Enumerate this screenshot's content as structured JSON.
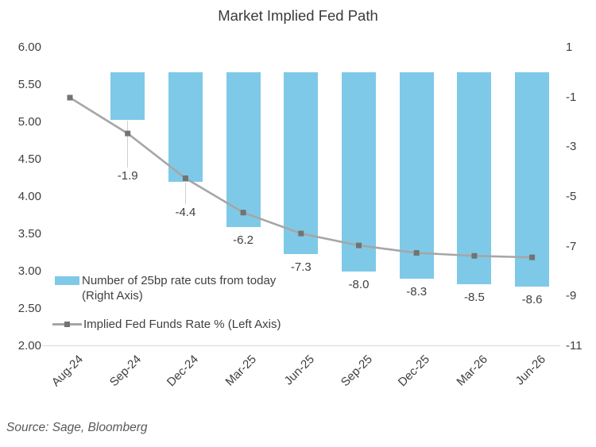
{
  "title": "Market Implied Fed Path",
  "source": "Source: Sage, Bloomberg",
  "legend": [
    {
      "label": "Number of 25bp rate cuts from today (Right Axis)",
      "lines": [
        "Number of 25bp rate cuts from today",
        "(Right Axis)"
      ],
      "series_type": "bar"
    },
    {
      "label": "Implied Fed Funds Rate % (Left Axis)",
      "lines": [
        "Implied Fed Funds Rate % (Left Axis)"
      ],
      "series_type": "line"
    }
  ],
  "colors": {
    "bar": "#7fc9e8",
    "line": "#a6a6a6",
    "marker": "#737373",
    "axis_text": "#404040",
    "axis_line": "#d9d9d9",
    "leader_line": "#cfcfcf"
  },
  "chart_data": {
    "type": "bar",
    "subtype": "combo bar+line, dual axis",
    "title": "Market Implied Fed Path",
    "categories": [
      "Aug-24",
      "Sep-24",
      "Dec-24",
      "Mar-25",
      "Jun-25",
      "Sep-25",
      "Dec-25",
      "Mar-26",
      "Jun-26"
    ],
    "series": [
      {
        "name": "Number of 25bp rate cuts from today (Right Axis)",
        "type": "bar",
        "axis": "right",
        "values": [
          null,
          -1.9,
          -4.4,
          -6.2,
          -7.3,
          -8.0,
          -8.3,
          -8.5,
          -8.6
        ],
        "data_labels": [
          "",
          "-1.9",
          "-4.4",
          "-6.2",
          "-7.3",
          "-8.0",
          "-8.3",
          "-8.5",
          "-8.6"
        ]
      },
      {
        "name": "Implied Fed Funds Rate % (Left Axis)",
        "type": "line",
        "axis": "left",
        "values": [
          5.33,
          4.85,
          4.25,
          3.79,
          3.51,
          3.35,
          3.25,
          3.21,
          3.19
        ]
      }
    ],
    "left_axis": {
      "ticks": [
        "6.00",
        "5.50",
        "5.00",
        "4.50",
        "4.00",
        "3.50",
        "3.00",
        "2.50",
        "2.00"
      ],
      "range": [
        2.0,
        6.0
      ]
    },
    "right_axis": {
      "ticks": [
        "1",
        "-1",
        "-3",
        "-5",
        "-7",
        "-9",
        "-11"
      ],
      "range": [
        -11,
        1
      ]
    },
    "grid": false,
    "legend_position": "inside-bottom-left",
    "xlabel": "",
    "ylabel_left": "Implied Fed Funds Rate %",
    "ylabel_right": "Number of 25bp rate cuts"
  }
}
